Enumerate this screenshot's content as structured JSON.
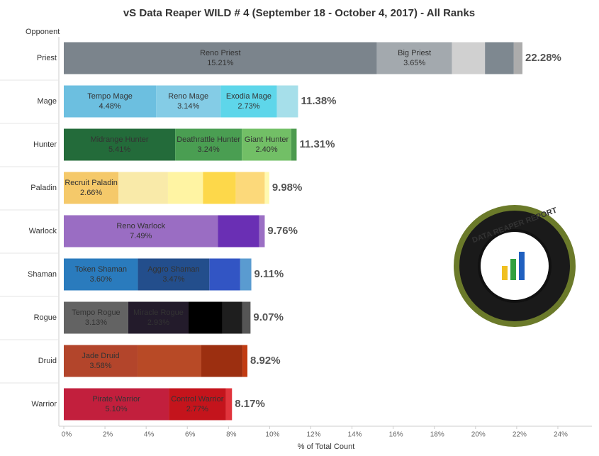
{
  "chart_data": {
    "type": "stacked-bar-horizontal",
    "title": "vS Data Reaper WILD # 4 (September 18 - October 4, 2017) - All Ranks",
    "y_axis_label": "Opponent",
    "x_axis_label": "% of Total Count",
    "xlim": [
      0,
      25.5
    ],
    "xticks": [
      {
        "value": 0,
        "label": "0%"
      },
      {
        "value": 2,
        "label": "2%"
      },
      {
        "value": 4,
        "label": "4%"
      },
      {
        "value": 6,
        "label": "6%"
      },
      {
        "value": 8,
        "label": "8%"
      },
      {
        "value": 10,
        "label": "10%"
      },
      {
        "value": 12,
        "label": "12%"
      },
      {
        "value": 14,
        "label": "14%"
      },
      {
        "value": 16,
        "label": "16%"
      },
      {
        "value": 18,
        "label": "18%"
      },
      {
        "value": 20,
        "label": "20%"
      },
      {
        "value": 22,
        "label": "22%"
      },
      {
        "value": 24,
        "label": "24%"
      }
    ],
    "rows": [
      {
        "category": "Priest",
        "total": 22.28,
        "total_label": "22.28%",
        "segments": [
          {
            "name": "Reno Priest",
            "value": 15.21,
            "value_label": "15.21%",
            "color": "#7b848c"
          },
          {
            "name": "Big Priest",
            "value": 3.65,
            "value_label": "3.65%",
            "color": "#a3a9ae"
          },
          {
            "value": 1.6,
            "color": "#d0d0d0"
          },
          {
            "value": 1.4,
            "color": "#7e8890"
          },
          {
            "value": 0.42,
            "color": "#acacac"
          }
        ]
      },
      {
        "category": "Mage",
        "total": 11.38,
        "total_label": "11.38%",
        "segments": [
          {
            "name": "Tempo Mage",
            "value": 4.48,
            "value_label": "4.48%",
            "color": "#6cbfe0"
          },
          {
            "name": "Reno Mage",
            "value": 3.14,
            "value_label": "3.14%",
            "color": "#84cce6"
          },
          {
            "name": "Exodia Mage",
            "value": 2.73,
            "value_label": "2.73%",
            "color": "#5ed6ea"
          },
          {
            "value": 1.03,
            "color": "#a6dfea"
          }
        ]
      },
      {
        "category": "Hunter",
        "total": 11.31,
        "total_label": "11.31%",
        "segments": [
          {
            "name": "Midrange Hunter",
            "value": 5.41,
            "value_label": "5.41%",
            "color": "#236b3a"
          },
          {
            "name": "Deathrattle Hunter",
            "value": 3.24,
            "value_label": "3.24%",
            "color": "#4a9e52"
          },
          {
            "name": "Giant Hunter",
            "value": 2.4,
            "value_label": "2.40%",
            "color": "#72bf66"
          },
          {
            "value": 0.26,
            "color": "#4c9a4e"
          }
        ]
      },
      {
        "category": "Paladin",
        "total": 9.98,
        "total_label": "9.98%",
        "segments": [
          {
            "name": "Recruit Paladin",
            "value": 2.66,
            "value_label": "2.66%",
            "color": "#f5c96a"
          },
          {
            "value": 2.4,
            "color": "#f9eaa9"
          },
          {
            "value": 1.7,
            "color": "#fff4a3"
          },
          {
            "value": 1.6,
            "color": "#fdd84a"
          },
          {
            "value": 1.4,
            "color": "#fcd97a"
          },
          {
            "value": 0.22,
            "color": "#fff9b0"
          }
        ]
      },
      {
        "category": "Warlock",
        "total": 9.76,
        "total_label": "9.76%",
        "segments": [
          {
            "name": "Reno Warlock",
            "value": 7.49,
            "value_label": "7.49%",
            "color": "#9a6dc3"
          },
          {
            "value": 2.0,
            "color": "#6a2fb4"
          },
          {
            "value": 0.27,
            "color": "#9b6fc4"
          }
        ]
      },
      {
        "category": "Shaman",
        "total": 9.11,
        "total_label": "9.11%",
        "segments": [
          {
            "name": "Token Shaman",
            "value": 3.6,
            "value_label": "3.60%",
            "color": "#2a7bbd"
          },
          {
            "name": "Aggro Shaman",
            "value": 3.47,
            "value_label": "3.47%",
            "color": "#234e8c"
          },
          {
            "value": 1.5,
            "color": "#3255c4"
          },
          {
            "value": 0.54,
            "color": "#5a9bd0"
          }
        ]
      },
      {
        "category": "Rogue",
        "total": 9.07,
        "total_label": "9.07%",
        "segments": [
          {
            "name": "Tempo Rogue",
            "value": 3.13,
            "value_label": "3.13%",
            "color": "#636363"
          },
          {
            "name": "Miracle Rogue",
            "value": 2.93,
            "value_label": "2.93%",
            "color": "#231b2b"
          },
          {
            "value": 1.65,
            "color": "#000000"
          },
          {
            "value": 0.95,
            "color": "#1e1e1e"
          },
          {
            "value": 0.41,
            "color": "#555555"
          }
        ]
      },
      {
        "category": "Druid",
        "total": 8.92,
        "total_label": "8.92%",
        "segments": [
          {
            "name": "Jade Druid",
            "value": 3.58,
            "value_label": "3.58%",
            "color": "#b3452b"
          },
          {
            "value": 3.1,
            "color": "#b84a26"
          },
          {
            "value": 2.0,
            "color": "#9c2f10"
          },
          {
            "value": 0.24,
            "color": "#c13b12"
          }
        ]
      },
      {
        "category": "Warrior",
        "total": 8.17,
        "total_label": "8.17%",
        "segments": [
          {
            "name": "Pirate Warrior",
            "value": 5.1,
            "value_label": "5.10%",
            "color": "#c21f3d"
          },
          {
            "name": "Control Warrior",
            "value": 2.77,
            "value_label": "2.77%",
            "color": "#c4141c"
          },
          {
            "value": 0.3,
            "color": "#e0343c"
          }
        ]
      }
    ],
    "logo_text": "DATA REAPER REPORT"
  }
}
